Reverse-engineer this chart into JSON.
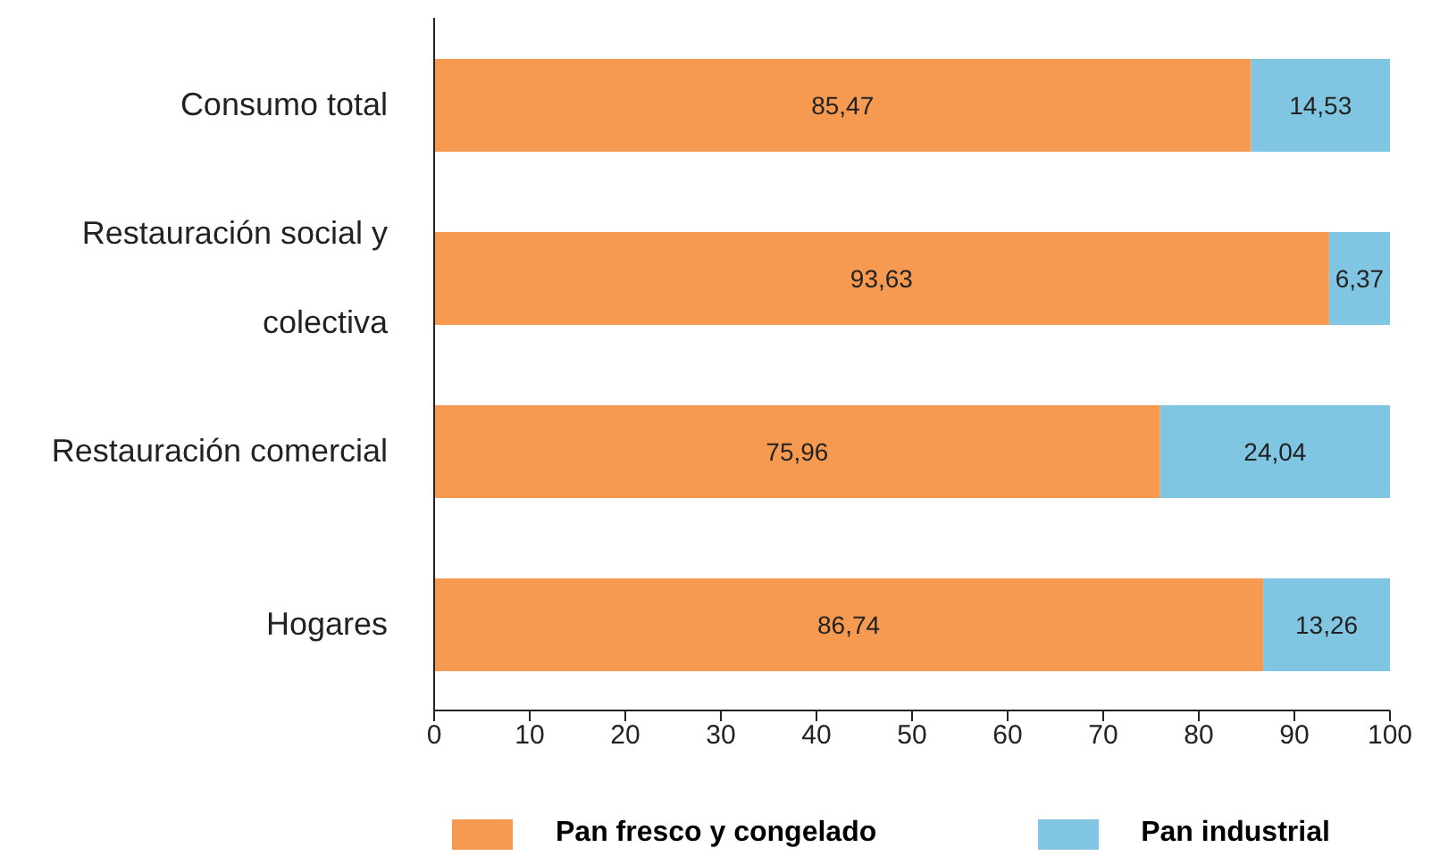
{
  "chart_data": {
    "type": "bar",
    "orientation": "horizontal",
    "stacked": true,
    "categories": [
      "Consumo total",
      "Restauración social y colectiva",
      "Restauración comercial",
      "Hogares"
    ],
    "series": [
      {
        "name": "Pan fresco y congelado",
        "color": "#f79a51",
        "values": [
          85.47,
          93.63,
          75.96,
          86.74
        ],
        "value_labels": [
          "85,47",
          "93,63",
          "75,96",
          "86,74"
        ]
      },
      {
        "name": "Pan industrial",
        "color": "#80c5e2",
        "values": [
          14.53,
          6.37,
          24.04,
          13.26
        ],
        "value_labels": [
          "14,53",
          "6,37",
          "24,04",
          "13,26"
        ]
      }
    ],
    "xlim": [
      0,
      100
    ],
    "xticks": [
      0,
      10,
      20,
      30,
      40,
      50,
      60,
      70,
      80,
      90,
      100
    ],
    "legend": "bottom"
  }
}
